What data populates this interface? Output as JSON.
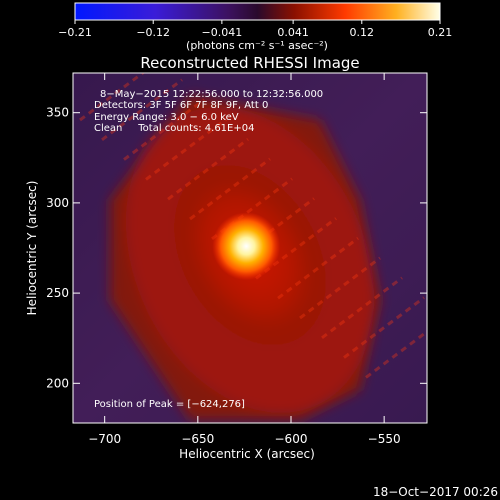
{
  "chart_data": {
    "type": "heatmap",
    "title": "Reconstructed RHESSI Image",
    "xlabel": "Heliocentric X (arcsec)",
    "ylabel": "Heliocentric Y (arcsec)",
    "xlim": [
      -717,
      -527
    ],
    "ylim": [
      178,
      372
    ],
    "x_ticks": [
      -700,
      -650,
      -600,
      -550
    ],
    "y_ticks": [
      200,
      250,
      300,
      350
    ],
    "x_tick_labels": [
      "−700",
      "−650",
      "−600",
      "−550"
    ],
    "y_tick_labels": [
      "200",
      "250",
      "300",
      "350"
    ],
    "peak": {
      "x": -624,
      "y": 276,
      "value": 0.21
    },
    "colorbar": {
      "min": -0.21,
      "max": 0.21,
      "ticks": [
        -0.21,
        -0.12,
        -0.041,
        0.041,
        0.12,
        0.21
      ],
      "tick_labels": [
        "−0.21",
        "−0.12",
        "−0.041",
        "0.041",
        "0.12",
        "0.21"
      ],
      "unit_label": "(photons cm⁻² s⁻¹ asec⁻²)"
    },
    "annotations": [
      "8−May−2015 12:22:56.000 to 12:32:56.000",
      "Detectors: 3F 5F 6F 7F 8F 9F, Att 0",
      "Energy Range: 3.0 − 6.0 keV",
      "Clean     Total counts: 4.61E+04"
    ],
    "peak_label": "Position of Peak = [−624,276]"
  },
  "footer_date": "18−Oct−2017 00:26"
}
